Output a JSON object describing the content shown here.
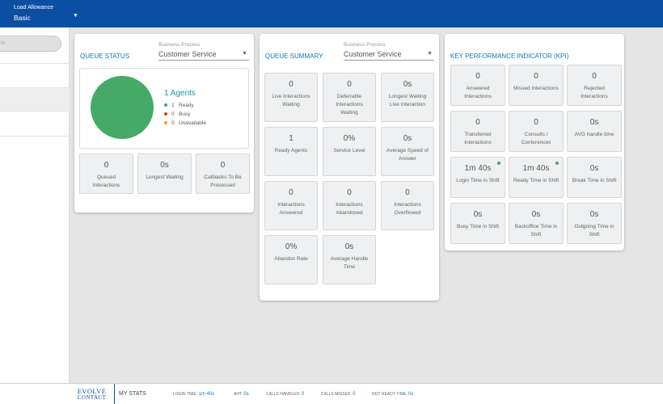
{
  "header": {
    "load_label": "Load Allowance",
    "load_value": "Basic"
  },
  "sidebar": {
    "search_placeholder": "ts"
  },
  "queue_status": {
    "title": "QUEUE STATUS",
    "bp_label": "Business Process",
    "bp_value": "Customer Service",
    "agents_label": "1 Agents",
    "legend": [
      {
        "count": "1",
        "label": "Ready",
        "color": "#3cab5e"
      },
      {
        "count": "0",
        "label": "Busy",
        "color": "#d93a2b"
      },
      {
        "count": "0",
        "label": "Unavailable",
        "color": "#f2a900"
      }
    ],
    "pie_color": "#45aa67",
    "tiles": [
      {
        "value": "0",
        "label": "Queued Interactions"
      },
      {
        "value": "0s",
        "label": "Longest Waiting"
      },
      {
        "value": "0",
        "label": "Callbacks To Be Processed"
      }
    ]
  },
  "queue_summary": {
    "title": "QUEUE SUMMARY",
    "bp_label": "Business Process",
    "bp_value": "Customer Service",
    "tiles": [
      {
        "value": "0",
        "label": "Live Interactions Waiting"
      },
      {
        "value": "0",
        "label": "Deferrable Interactions Waiting"
      },
      {
        "value": "0s",
        "label": "Longest Waiting Live Interaction"
      },
      {
        "value": "1",
        "label": "Ready Agents"
      },
      {
        "value": "0%",
        "label": "Service Level"
      },
      {
        "value": "0s",
        "label": "Average Speed of Answer"
      },
      {
        "value": "0",
        "label": "Interactions Answered"
      },
      {
        "value": "0",
        "label": "Interactions Abandoned"
      },
      {
        "value": "0",
        "label": "Interactions Overflowed"
      },
      {
        "value": "0%",
        "label": "Abandon Rate"
      },
      {
        "value": "0s",
        "label": "Average Handle Time"
      }
    ]
  },
  "kpi": {
    "title": "KEY PERFORMANCE INDICATOR (KPI)",
    "tiles": [
      {
        "value": "0",
        "label": "Answered Interactions"
      },
      {
        "value": "0",
        "label": "Missed Interactions"
      },
      {
        "value": "0",
        "label": "Rejected Interactions"
      },
      {
        "value": "0",
        "label": "Transferred Interactions"
      },
      {
        "value": "0",
        "label": "Consults / Conferences"
      },
      {
        "value": "0s",
        "label": "AVG handle time"
      },
      {
        "value": "1m 40s",
        "label": "Login Time in Shift"
      },
      {
        "value": "1m 40s",
        "label": "Ready Time in Shift"
      },
      {
        "value": "0s",
        "label": "Break Time in Shift"
      },
      {
        "value": "0s",
        "label": "Busy Time in Shift"
      },
      {
        "value": "0s",
        "label": "Backoffice Time in Shift"
      },
      {
        "value": "0s",
        "label": "Outgoing Time in Shift"
      }
    ]
  },
  "footer": {
    "logo_line1": "EVOLVE",
    "logo_line2": "CONTACT",
    "my_stats": "MY STATS",
    "stats": [
      {
        "label": "LOGIN TIME:",
        "value": "1m 40s"
      },
      {
        "label": "AHT:",
        "value": "0s"
      },
      {
        "label": "CALLS HANDLED:",
        "value": "0"
      },
      {
        "label": "CALLS MISSED:",
        "value": "0"
      },
      {
        "label": "NOT READY TIME:",
        "value": "0s"
      }
    ]
  }
}
